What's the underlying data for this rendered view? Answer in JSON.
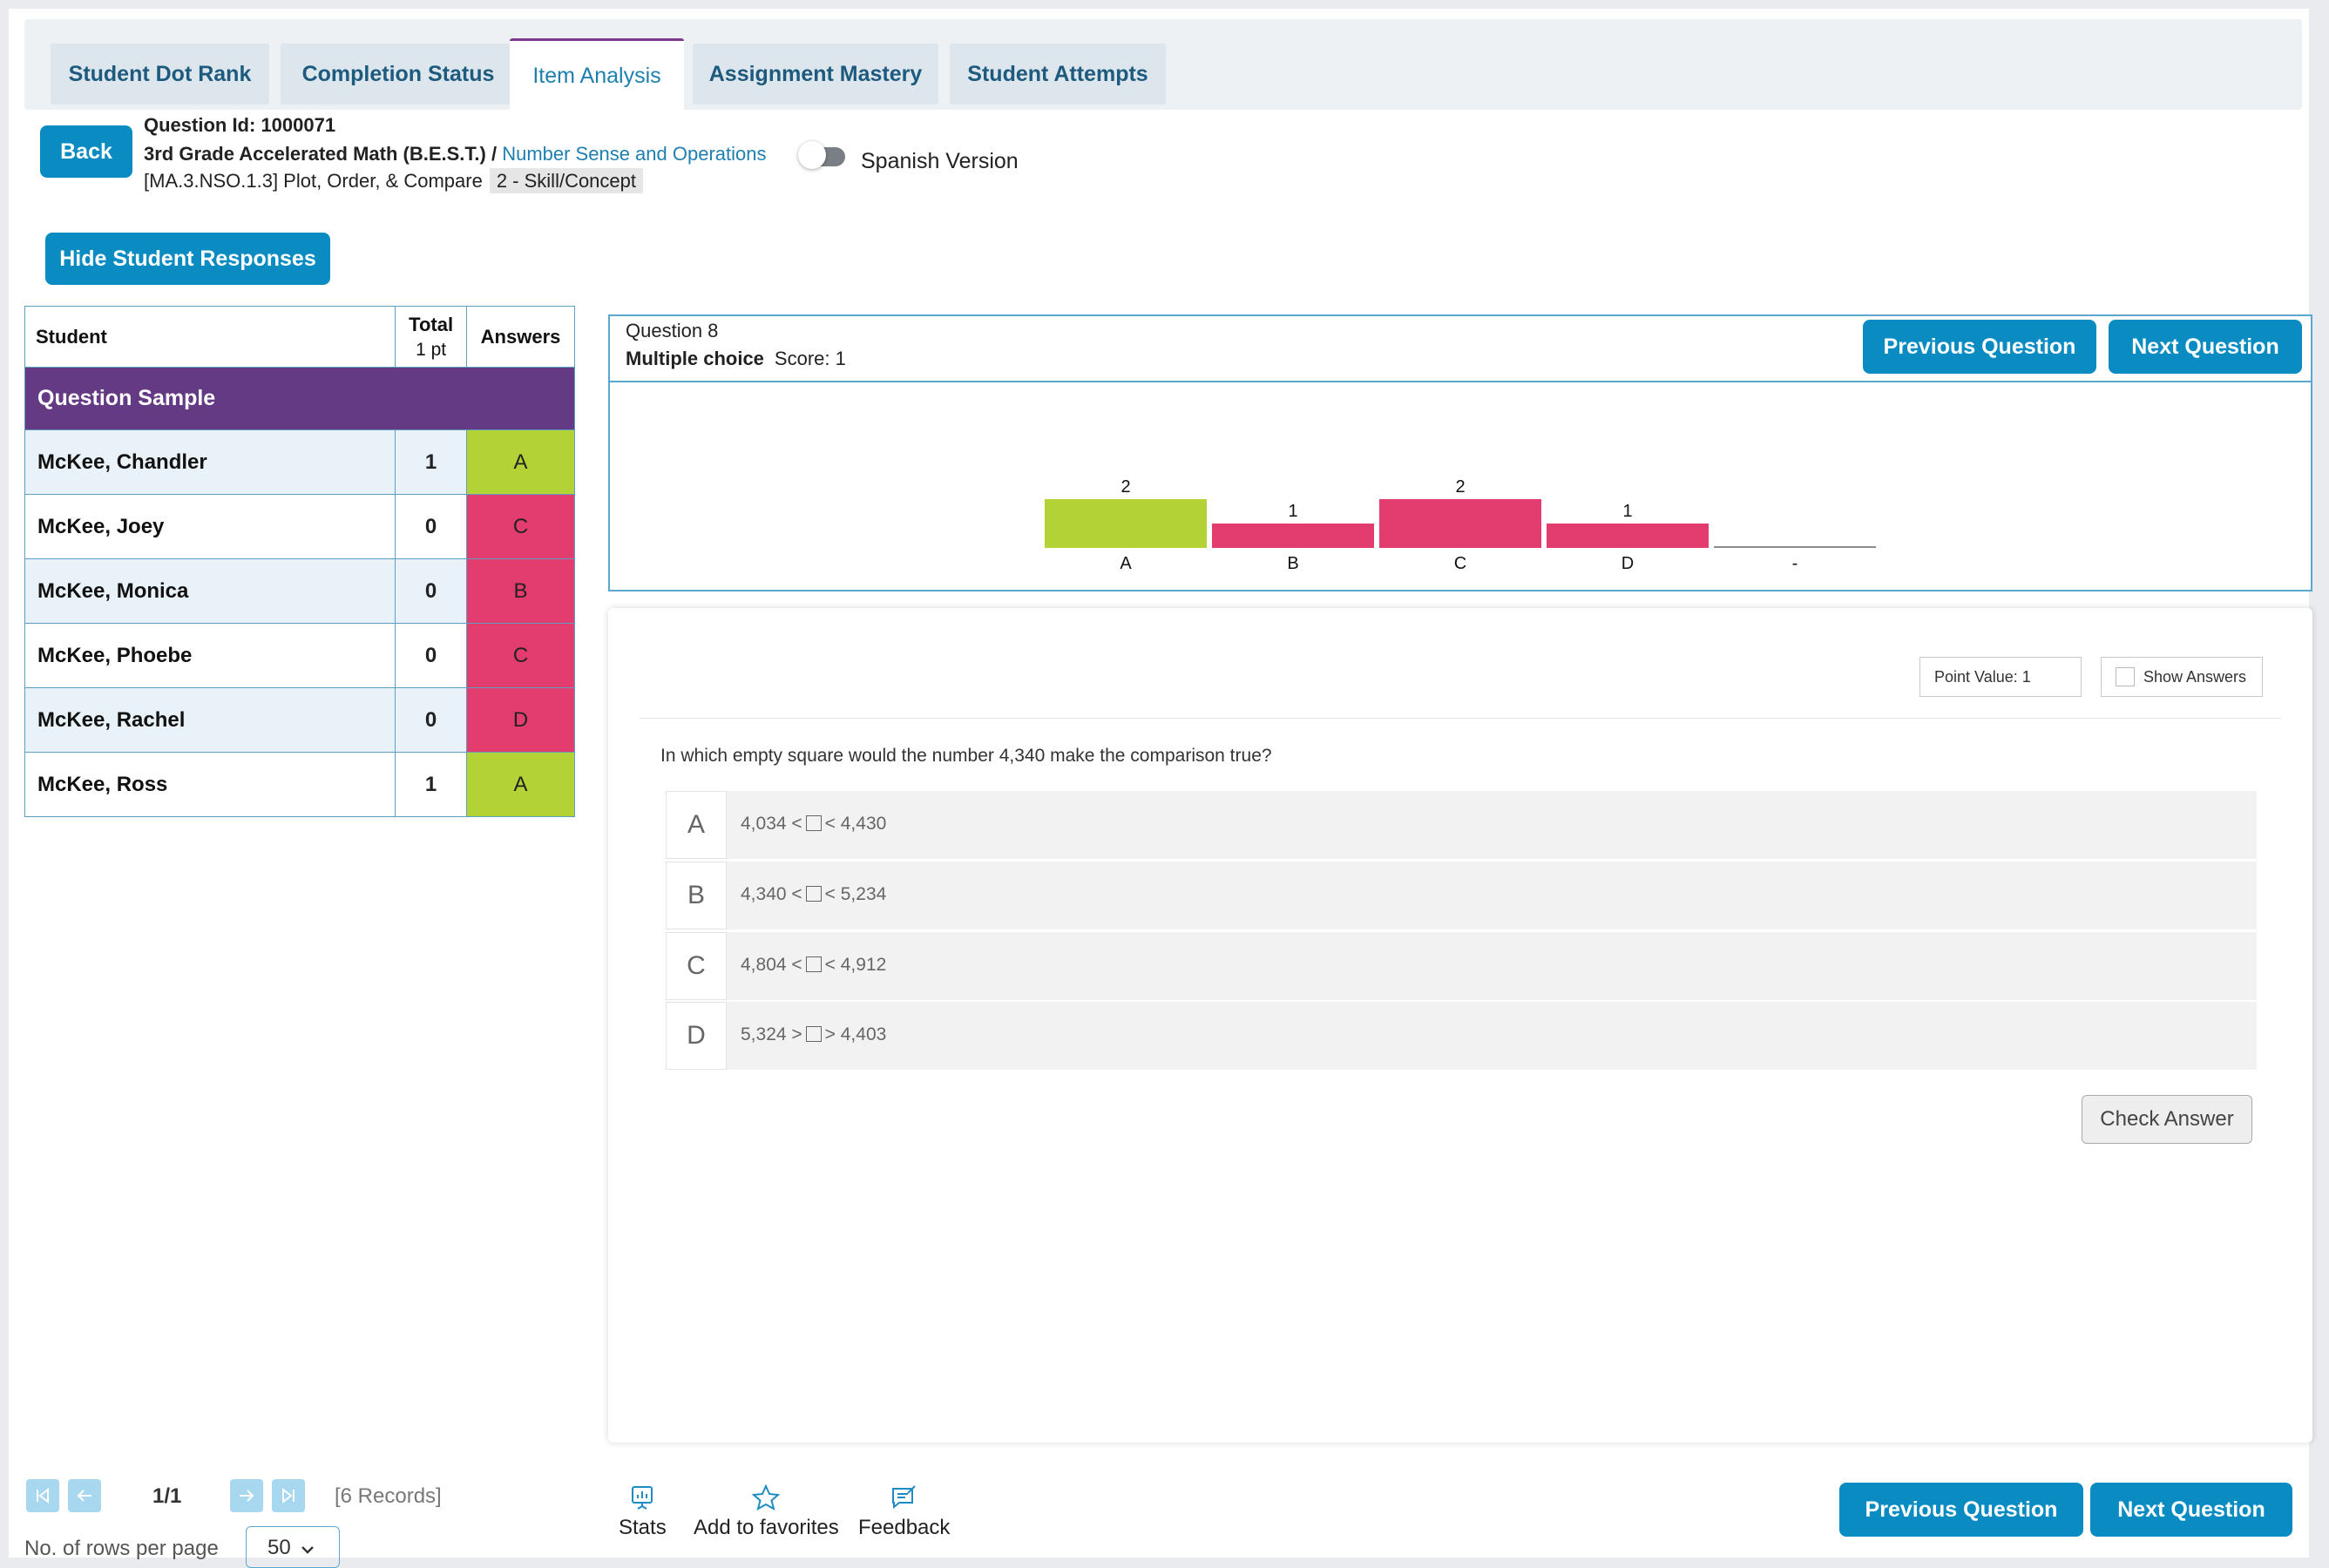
{
  "tabs": [
    {
      "label": "Student Dot Rank"
    },
    {
      "label": "Completion Status"
    },
    {
      "label": "Item Analysis"
    },
    {
      "label": "Assignment Mastery"
    },
    {
      "label": "Student Attempts"
    }
  ],
  "header": {
    "back_label": "Back",
    "question_id": "Question Id: 1000071",
    "course": "3rd Grade Accelerated Math (B.E.S.T.) / ",
    "topic_link": "Number Sense and Operations",
    "standard": "[MA.3.NSO.1.3] Plot, Order, & Compare",
    "level_chip": "2 - Skill/Concept",
    "spanish_label": "Spanish Version",
    "hide_responses_label": "Hide Student Responses"
  },
  "table": {
    "col_student": "Student",
    "col_total": "Total",
    "col_total_sub": "1 pt",
    "col_answers": "Answers",
    "sample_label": "Question Sample",
    "rows": [
      {
        "name": "McKee, Chandler",
        "total": "1",
        "answer": "A",
        "color": "#b3d235"
      },
      {
        "name": "McKee, Joey",
        "total": "0",
        "answer": "C",
        "color": "#e23d6e"
      },
      {
        "name": "McKee, Monica",
        "total": "0",
        "answer": "B",
        "color": "#e23d6e"
      },
      {
        "name": "McKee, Phoebe",
        "total": "0",
        "answer": "C",
        "color": "#e23d6e"
      },
      {
        "name": "McKee, Rachel",
        "total": "0",
        "answer": "D",
        "color": "#e23d6e"
      },
      {
        "name": "McKee, Ross",
        "total": "1",
        "answer": "A",
        "color": "#b3d235"
      }
    ]
  },
  "question": {
    "number": "Question 8",
    "type": "Multiple choice",
    "score": "Score: 1",
    "prev_label": "Previous Question",
    "next_label": "Next Question"
  },
  "chart_data": {
    "type": "bar",
    "categories": [
      "A",
      "B",
      "C",
      "D",
      "-"
    ],
    "values": [
      2,
      1,
      2,
      1,
      0
    ],
    "colors": [
      "#b3d235",
      "#e23d6e",
      "#e23d6e",
      "#e23d6e",
      "#e23d6e"
    ],
    "value_labels": [
      "2",
      "1",
      "2",
      "1",
      ""
    ],
    "ylim": [
      0,
      2
    ]
  },
  "preview": {
    "point_value": "Point Value: 1",
    "show_answers": "Show Answers",
    "stem": "In which empty square would the number 4,340 make the comparison true?",
    "choices": [
      {
        "letter": "A",
        "left": "4,034 <",
        "right": "< 4,430"
      },
      {
        "letter": "B",
        "left": "4,340 <",
        "right": "< 5,234"
      },
      {
        "letter": "C",
        "left": "4,804 <",
        "right": "< 4,912"
      },
      {
        "letter": "D",
        "left": "5,324 >",
        "right": "> 4,403"
      }
    ],
    "check_label": "Check Answer"
  },
  "pagination": {
    "page": "1/1",
    "records": "[6 Records]",
    "rows_label": "No. of rows per page",
    "rows_value": "50"
  },
  "footer": {
    "stats": "Stats",
    "favorites": "Add to favorites",
    "feedback": "Feedback",
    "prev_label": "Previous Question",
    "next_label": "Next Question"
  }
}
